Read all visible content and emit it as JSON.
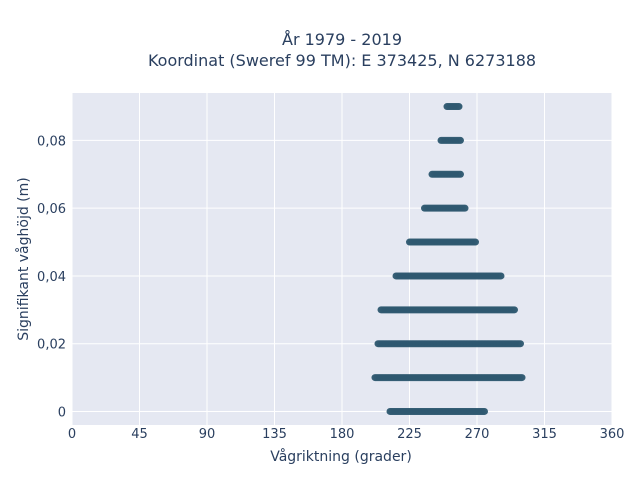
{
  "chart_data": {
    "type": "scatter",
    "title_line1": "År 1979 - 2019",
    "title_line2": "Koordinat (Sweref 99 TM): E 373425, N 6273188",
    "xlabel": "Vågriktning (grader)",
    "ylabel": "Signifikant våghöjd (m)",
    "xlim": [
      0,
      360
    ],
    "ylim": [
      -0.004,
      0.094
    ],
    "x_ticks": [
      "0",
      "45",
      "90",
      "135",
      "180",
      "225",
      "270",
      "315",
      "360"
    ],
    "x_tick_values": [
      0,
      45,
      90,
      135,
      180,
      225,
      270,
      315,
      360
    ],
    "y_ticks": [
      "0",
      "0,02",
      "0,04",
      "0,06",
      "0,08"
    ],
    "y_tick_values": [
      0,
      0.02,
      0.04,
      0.06,
      0.08
    ],
    "grid": true,
    "marker_color": "#2e5870",
    "background_color": "#e5e8f2",
    "series": [
      {
        "bands": [
          {
            "y": 0.0,
            "x_min": 212,
            "x_max": 275
          },
          {
            "y": 0.01,
            "x_min": 202,
            "x_max": 300
          },
          {
            "y": 0.02,
            "x_min": 204,
            "x_max": 299
          },
          {
            "y": 0.03,
            "x_min": 206,
            "x_max": 295
          },
          {
            "y": 0.04,
            "x_min": 216,
            "x_max": 286
          },
          {
            "y": 0.05,
            "x_min": 225,
            "x_max": 269
          },
          {
            "y": 0.06,
            "x_min": 235,
            "x_max": 262
          },
          {
            "y": 0.07,
            "x_min": 240,
            "x_max": 259
          },
          {
            "y": 0.08,
            "x_min": 246,
            "x_max": 259
          },
          {
            "y": 0.09,
            "x_min": 250,
            "x_max": 258
          }
        ]
      }
    ]
  }
}
